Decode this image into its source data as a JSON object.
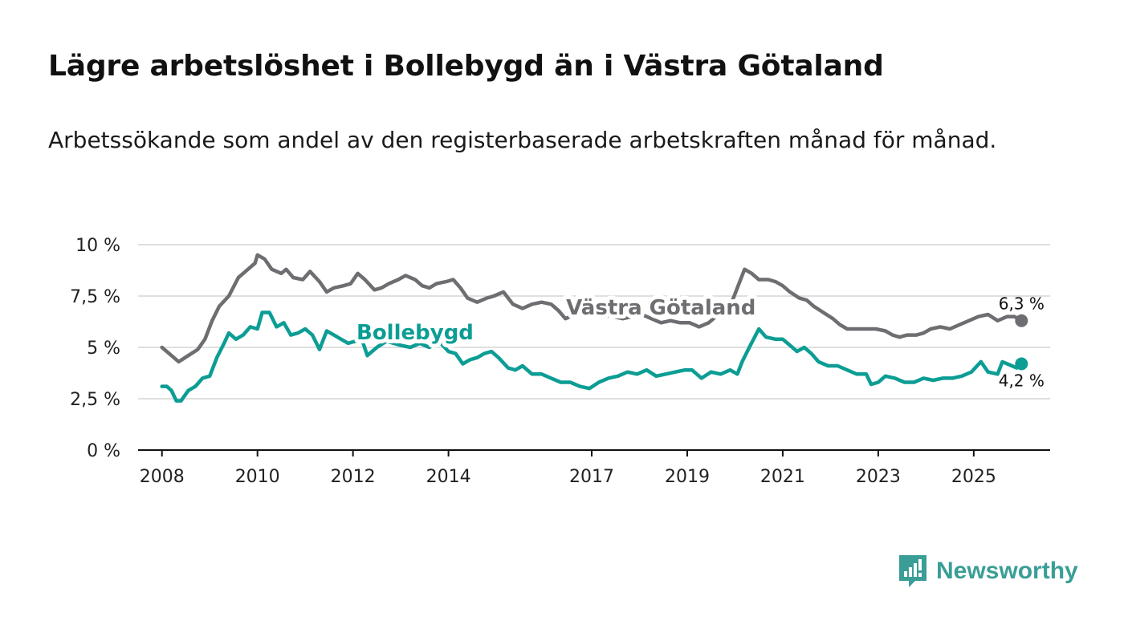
{
  "title": "Lägre arbetslöshet i Bollebygd än i Västra Götaland",
  "subtitle": "Arbetssökande som andel av den registerbaserade arbetskraften månad för månad.",
  "brand": {
    "name": "Newsworthy",
    "color": "#3a9e97"
  },
  "chart_data": {
    "type": "line",
    "title": "Lägre arbetslöshet i Bollebygd än i Västra Götaland",
    "xlabel": "",
    "ylabel": "",
    "ylim": [
      0,
      10
    ],
    "xlim": [
      2007.5,
      2026.6
    ],
    "y_ticks": [
      {
        "value": 0,
        "label": "0 %"
      },
      {
        "value": 2.5,
        "label": "2,5 %"
      },
      {
        "value": 5,
        "label": "5 %"
      },
      {
        "value": 7.5,
        "label": "7,5 %"
      },
      {
        "value": 10,
        "label": "10 %"
      }
    ],
    "x_ticks": [
      {
        "value": 2008,
        "label": "2008"
      },
      {
        "value": 2010,
        "label": "2010"
      },
      {
        "value": 2012,
        "label": "2012"
      },
      {
        "value": 2014,
        "label": "2014"
      },
      {
        "value": 2017,
        "label": "2017"
      },
      {
        "value": 2019,
        "label": "2019"
      },
      {
        "value": 2021,
        "label": "2021"
      },
      {
        "value": 2023,
        "label": "2023"
      },
      {
        "value": 2025,
        "label": "2025"
      }
    ],
    "grid": true,
    "series": [
      {
        "name": "Västra Götaland",
        "color": "#6e6d71",
        "end_label": "6,3 %",
        "points": [
          [
            2008.0,
            5.0
          ],
          [
            2008.15,
            4.7
          ],
          [
            2008.35,
            4.3
          ],
          [
            2008.55,
            4.6
          ],
          [
            2008.75,
            4.9
          ],
          [
            2008.9,
            5.4
          ],
          [
            2009.05,
            6.3
          ],
          [
            2009.2,
            7.0
          ],
          [
            2009.4,
            7.5
          ],
          [
            2009.6,
            8.4
          ],
          [
            2009.8,
            8.8
          ],
          [
            2009.95,
            9.1
          ],
          [
            2010.0,
            9.5
          ],
          [
            2010.15,
            9.3
          ],
          [
            2010.3,
            8.8
          ],
          [
            2010.5,
            8.6
          ],
          [
            2010.6,
            8.8
          ],
          [
            2010.75,
            8.4
          ],
          [
            2010.95,
            8.3
          ],
          [
            2011.1,
            8.7
          ],
          [
            2011.3,
            8.2
          ],
          [
            2011.45,
            7.7
          ],
          [
            2011.6,
            7.9
          ],
          [
            2011.8,
            8.0
          ],
          [
            2011.95,
            8.1
          ],
          [
            2012.1,
            8.6
          ],
          [
            2012.25,
            8.3
          ],
          [
            2012.45,
            7.8
          ],
          [
            2012.6,
            7.9
          ],
          [
            2012.75,
            8.1
          ],
          [
            2012.95,
            8.3
          ],
          [
            2013.1,
            8.5
          ],
          [
            2013.3,
            8.3
          ],
          [
            2013.45,
            8.0
          ],
          [
            2013.6,
            7.9
          ],
          [
            2013.75,
            8.1
          ],
          [
            2013.95,
            8.2
          ],
          [
            2014.1,
            8.3
          ],
          [
            2014.25,
            7.9
          ],
          [
            2014.4,
            7.4
          ],
          [
            2014.6,
            7.2
          ],
          [
            2014.8,
            7.4
          ],
          [
            2014.95,
            7.5
          ],
          [
            2015.15,
            7.7
          ],
          [
            2015.35,
            7.1
          ],
          [
            2015.55,
            6.9
          ],
          [
            2015.75,
            7.1
          ],
          [
            2015.95,
            7.2
          ],
          [
            2016.15,
            7.1
          ],
          [
            2016.3,
            6.8
          ],
          [
            2016.45,
            6.4
          ],
          [
            2016.65,
            6.6
          ],
          [
            2016.85,
            6.8
          ],
          [
            2017.05,
            6.9
          ],
          [
            2017.25,
            6.6
          ],
          [
            2017.45,
            6.5
          ],
          [
            2017.65,
            6.4
          ],
          [
            2017.85,
            6.5
          ],
          [
            2018.05,
            6.6
          ],
          [
            2018.25,
            6.4
          ],
          [
            2018.45,
            6.2
          ],
          [
            2018.65,
            6.3
          ],
          [
            2018.85,
            6.2
          ],
          [
            2019.05,
            6.2
          ],
          [
            2019.25,
            6.0
          ],
          [
            2019.45,
            6.2
          ],
          [
            2019.6,
            6.5
          ],
          [
            2019.8,
            6.8
          ],
          [
            2019.95,
            7.3
          ],
          [
            2020.1,
            8.2
          ],
          [
            2020.2,
            8.8
          ],
          [
            2020.35,
            8.6
          ],
          [
            2020.5,
            8.3
          ],
          [
            2020.7,
            8.3
          ],
          [
            2020.85,
            8.2
          ],
          [
            2021.0,
            8.0
          ],
          [
            2021.15,
            7.7
          ],
          [
            2021.35,
            7.4
          ],
          [
            2021.5,
            7.3
          ],
          [
            2021.65,
            7.0
          ],
          [
            2021.85,
            6.7
          ],
          [
            2022.05,
            6.4
          ],
          [
            2022.2,
            6.1
          ],
          [
            2022.35,
            5.9
          ],
          [
            2022.55,
            5.9
          ],
          [
            2022.75,
            5.9
          ],
          [
            2022.95,
            5.9
          ],
          [
            2023.15,
            5.8
          ],
          [
            2023.3,
            5.6
          ],
          [
            2023.45,
            5.5
          ],
          [
            2023.6,
            5.6
          ],
          [
            2023.8,
            5.6
          ],
          [
            2023.95,
            5.7
          ],
          [
            2024.1,
            5.9
          ],
          [
            2024.3,
            6.0
          ],
          [
            2024.5,
            5.9
          ],
          [
            2024.7,
            6.1
          ],
          [
            2024.9,
            6.3
          ],
          [
            2025.1,
            6.5
          ],
          [
            2025.3,
            6.6
          ],
          [
            2025.5,
            6.3
          ],
          [
            2025.7,
            6.5
          ],
          [
            2025.85,
            6.5
          ],
          [
            2026.0,
            6.3
          ]
        ]
      },
      {
        "name": "Bollebygd",
        "color": "#0c9d94",
        "end_label": "4,2 %",
        "points": [
          [
            2008.0,
            3.1
          ],
          [
            2008.1,
            3.1
          ],
          [
            2008.2,
            2.9
          ],
          [
            2008.3,
            2.4
          ],
          [
            2008.4,
            2.4
          ],
          [
            2008.55,
            2.9
          ],
          [
            2008.7,
            3.1
          ],
          [
            2008.85,
            3.5
          ],
          [
            2009.0,
            3.6
          ],
          [
            2009.15,
            4.5
          ],
          [
            2009.3,
            5.2
          ],
          [
            2009.4,
            5.7
          ],
          [
            2009.55,
            5.4
          ],
          [
            2009.7,
            5.6
          ],
          [
            2009.85,
            6.0
          ],
          [
            2010.0,
            5.9
          ],
          [
            2010.1,
            6.7
          ],
          [
            2010.25,
            6.7
          ],
          [
            2010.4,
            6.0
          ],
          [
            2010.55,
            6.2
          ],
          [
            2010.7,
            5.6
          ],
          [
            2010.85,
            5.7
          ],
          [
            2011.0,
            5.9
          ],
          [
            2011.15,
            5.6
          ],
          [
            2011.3,
            4.9
          ],
          [
            2011.45,
            5.8
          ],
          [
            2011.6,
            5.6
          ],
          [
            2011.75,
            5.4
          ],
          [
            2011.9,
            5.2
          ],
          [
            2012.05,
            5.3
          ],
          [
            2012.2,
            5.3
          ],
          [
            2012.3,
            4.6
          ],
          [
            2012.5,
            5.0
          ],
          [
            2012.7,
            5.3
          ],
          [
            2012.85,
            5.2
          ],
          [
            2013.0,
            5.1
          ],
          [
            2013.2,
            5.0
          ],
          [
            2013.4,
            5.2
          ],
          [
            2013.6,
            5.0
          ],
          [
            2013.8,
            5.3
          ],
          [
            2014.0,
            4.8
          ],
          [
            2014.15,
            4.7
          ],
          [
            2014.3,
            4.2
          ],
          [
            2014.45,
            4.4
          ],
          [
            2014.6,
            4.5
          ],
          [
            2014.75,
            4.7
          ],
          [
            2014.9,
            4.8
          ],
          [
            2015.05,
            4.5
          ],
          [
            2015.25,
            4.0
          ],
          [
            2015.4,
            3.9
          ],
          [
            2015.55,
            4.1
          ],
          [
            2015.75,
            3.7
          ],
          [
            2015.95,
            3.7
          ],
          [
            2016.15,
            3.5
          ],
          [
            2016.35,
            3.3
          ],
          [
            2016.55,
            3.3
          ],
          [
            2016.75,
            3.1
          ],
          [
            2016.95,
            3.0
          ],
          [
            2017.15,
            3.3
          ],
          [
            2017.35,
            3.5
          ],
          [
            2017.55,
            3.6
          ],
          [
            2017.75,
            3.8
          ],
          [
            2017.95,
            3.7
          ],
          [
            2018.15,
            3.9
          ],
          [
            2018.35,
            3.6
          ],
          [
            2018.55,
            3.7
          ],
          [
            2018.75,
            3.8
          ],
          [
            2018.95,
            3.9
          ],
          [
            2019.1,
            3.9
          ],
          [
            2019.3,
            3.5
          ],
          [
            2019.5,
            3.8
          ],
          [
            2019.7,
            3.7
          ],
          [
            2019.9,
            3.9
          ],
          [
            2020.05,
            3.7
          ],
          [
            2020.15,
            4.3
          ],
          [
            2020.3,
            5.0
          ],
          [
            2020.5,
            5.9
          ],
          [
            2020.65,
            5.5
          ],
          [
            2020.85,
            5.4
          ],
          [
            2021.0,
            5.4
          ],
          [
            2021.15,
            5.1
          ],
          [
            2021.3,
            4.8
          ],
          [
            2021.45,
            5.0
          ],
          [
            2021.6,
            4.7
          ],
          [
            2021.75,
            4.3
          ],
          [
            2021.95,
            4.1
          ],
          [
            2022.15,
            4.1
          ],
          [
            2022.35,
            3.9
          ],
          [
            2022.55,
            3.7
          ],
          [
            2022.75,
            3.7
          ],
          [
            2022.85,
            3.2
          ],
          [
            2023.0,
            3.3
          ],
          [
            2023.15,
            3.6
          ],
          [
            2023.35,
            3.5
          ],
          [
            2023.55,
            3.3
          ],
          [
            2023.75,
            3.3
          ],
          [
            2023.95,
            3.5
          ],
          [
            2024.15,
            3.4
          ],
          [
            2024.35,
            3.5
          ],
          [
            2024.55,
            3.5
          ],
          [
            2024.75,
            3.6
          ],
          [
            2024.95,
            3.8
          ],
          [
            2025.15,
            4.3
          ],
          [
            2025.3,
            3.8
          ],
          [
            2025.5,
            3.7
          ],
          [
            2025.6,
            4.3
          ],
          [
            2025.8,
            4.1
          ],
          [
            2025.9,
            4.0
          ],
          [
            2026.0,
            4.2
          ]
        ]
      }
    ],
    "series_labels": [
      {
        "series": "Västra Götaland",
        "text": "Västra Götaland",
        "x": 2018.45,
        "y": 6.6
      },
      {
        "series": "Bollebygd",
        "text": "Bollebygd",
        "x": 2013.3,
        "y": 5.4
      }
    ]
  }
}
